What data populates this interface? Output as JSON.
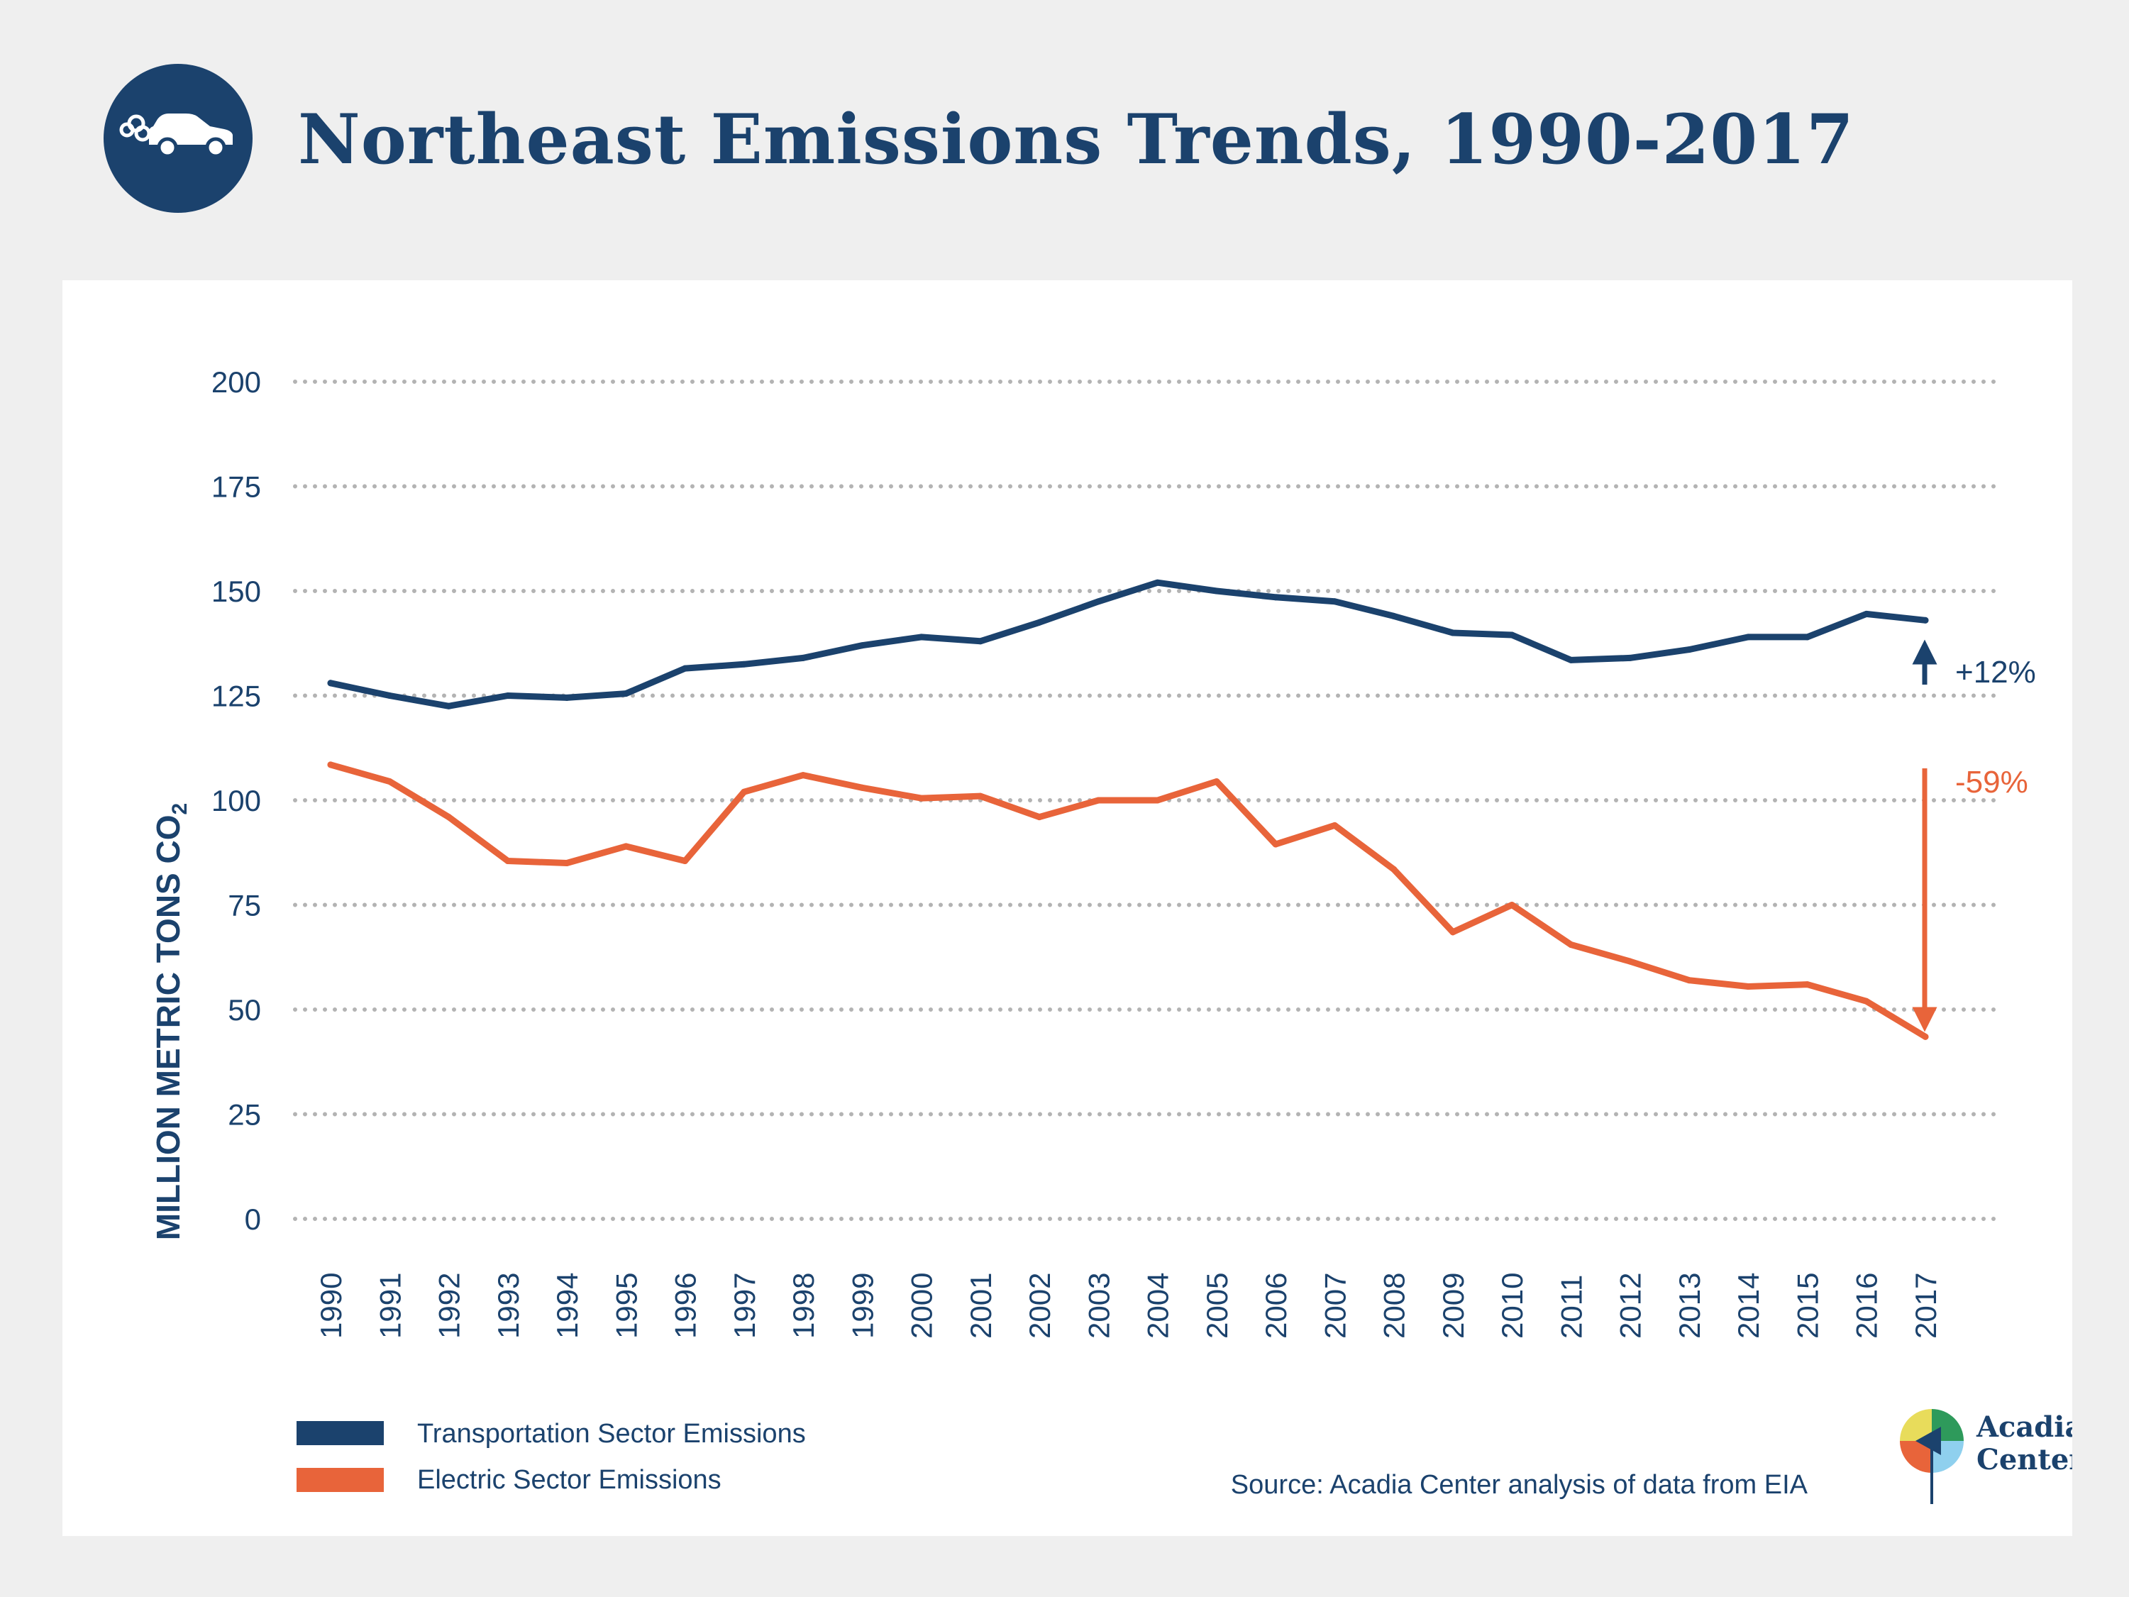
{
  "title": "Northeast Emissions Trends, 1990-2017",
  "header_icon": "car-exhaust-icon",
  "colors": {
    "navy": "#1b426d",
    "orange": "#e8643a",
    "grid": "#b3b3b3",
    "background": "#efefef",
    "panel": "#ffffff"
  },
  "chart_data": {
    "type": "line",
    "ylabel": "MILLION METRIC TONS CO2",
    "ylabel_main": "MILLION METRIC TONS CO",
    "ylabel_sub": "2",
    "ylim": [
      0,
      200
    ],
    "yticks": [
      0,
      25,
      50,
      75,
      100,
      125,
      150,
      175,
      200
    ],
    "grid": "horizontal-dotted",
    "x": [
      "1990",
      "1991",
      "1992",
      "1993",
      "1994",
      "1995",
      "1996",
      "1997",
      "1998",
      "1999",
      "2000",
      "2001",
      "2002",
      "2003",
      "2004",
      "2005",
      "2006",
      "2007",
      "2008",
      "2009",
      "2010",
      "2011",
      "2012",
      "2013",
      "2014",
      "2015",
      "2016",
      "2017"
    ],
    "series": [
      {
        "name": "Transportation Sector Emissions",
        "color": "#1b426d",
        "values": [
          128,
          125,
          122.5,
          125,
          124.5,
          125.5,
          131.5,
          132.5,
          134,
          137,
          139,
          138,
          142.5,
          147.5,
          152,
          150,
          148.5,
          147.5,
          144,
          140,
          139.5,
          133.5,
          134,
          136,
          139,
          139,
          144.5,
          143
        ]
      },
      {
        "name": "Electric Sector Emissions",
        "color": "#e8643a",
        "values": [
          108.5,
          104.5,
          96,
          85.5,
          85,
          89,
          85.5,
          102,
          106,
          103,
          100.5,
          101,
          96,
          100,
          100,
          104.5,
          89.5,
          94,
          83.5,
          68.5,
          75,
          65.5,
          61.5,
          57,
          55.5,
          56,
          52,
          43.5
        ]
      }
    ],
    "annotations": [
      {
        "text": "+12%",
        "color": "#1b426d",
        "direction": "up"
      },
      {
        "text": "-59%",
        "color": "#e8643a",
        "direction": "down"
      }
    ],
    "legend_position": "bottom-left"
  },
  "source": "Source: Acadia Center analysis of data from EIA",
  "logo": {
    "line1": "Acadia",
    "line2": "Center"
  }
}
